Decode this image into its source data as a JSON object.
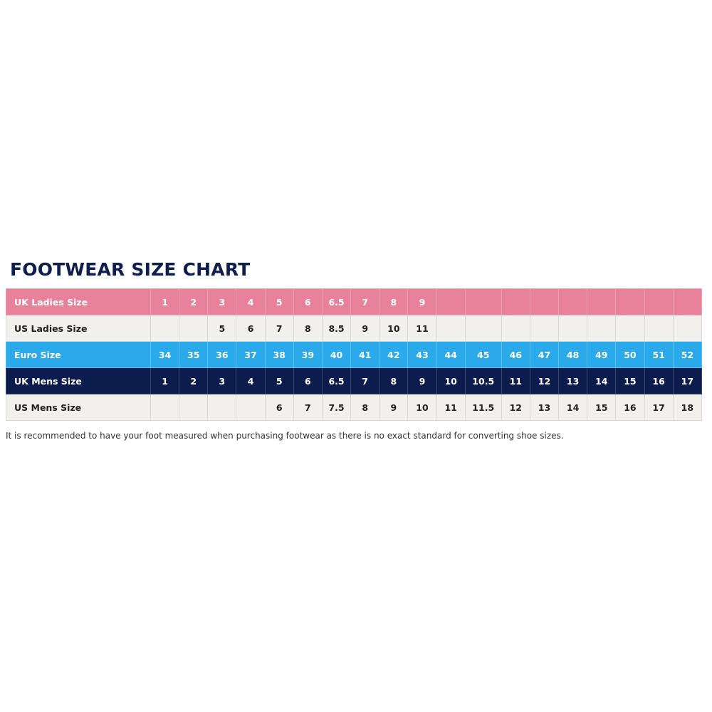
{
  "title": "FOOTWEAR SIZE CHART",
  "colors": {
    "uk_ladies": "#e8829a",
    "us_ladies": "#f1f0ec",
    "euro": "#2aaaea",
    "uk_mens": "#0c1c4d",
    "us_mens": "#f1f0ec",
    "title": "#0e1f4f"
  },
  "rows": [
    {
      "label": "UK Ladies Size",
      "style": "pink",
      "values": [
        "1",
        "2",
        "3",
        "4",
        "5",
        "6",
        "6.5",
        "7",
        "8",
        "9",
        "",
        "",
        "",
        "",
        "",
        "",
        "",
        "",
        ""
      ]
    },
    {
      "label": "US Ladies Size",
      "style": "light",
      "values": [
        "",
        "",
        "5",
        "6",
        "7",
        "8",
        "8.5",
        "9",
        "10",
        "11",
        "",
        "",
        "",
        "",
        "",
        "",
        "",
        "",
        ""
      ]
    },
    {
      "label": "Euro Size",
      "style": "blue",
      "values": [
        "34",
        "35",
        "36",
        "37",
        "38",
        "39",
        "40",
        "41",
        "42",
        "43",
        "44",
        "45",
        "46",
        "47",
        "48",
        "49",
        "50",
        "51",
        "52"
      ]
    },
    {
      "label": "UK Mens Size",
      "style": "navy",
      "values": [
        "1",
        "2",
        "3",
        "4",
        "5",
        "6",
        "6.5",
        "7",
        "8",
        "9",
        "10",
        "10.5",
        "11",
        "12",
        "13",
        "14",
        "15",
        "16",
        "17"
      ]
    },
    {
      "label": "US Mens Size",
      "style": "light",
      "values": [
        "",
        "",
        "",
        "",
        "6",
        "7",
        "7.5",
        "8",
        "9",
        "10",
        "11",
        "11.5",
        "12",
        "13",
        "14",
        "15",
        "16",
        "17",
        "18"
      ]
    }
  ],
  "note": "It is recommended to have your foot measured when purchasing footwear as there is no exact standard for converting shoe sizes."
}
